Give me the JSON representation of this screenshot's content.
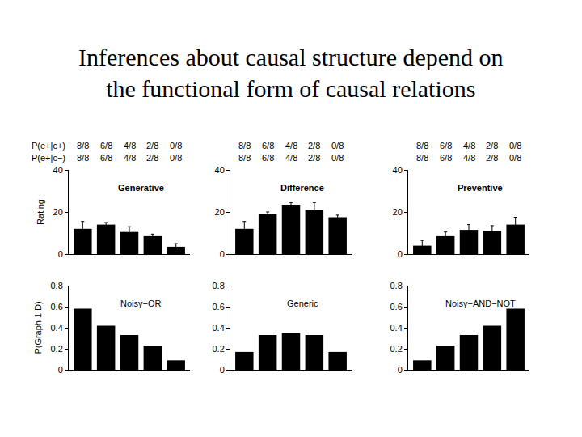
{
  "title": [
    "Inferences about causal structure depend on",
    "the functional form of causal relations"
  ],
  "chart_data": [
    {
      "type": "bar",
      "title": "Generative",
      "categories": [
        null,
        null,
        null,
        null,
        null
      ],
      "values": [
        12,
        14,
        10.5,
        8.5,
        3.5
      ],
      "errors": [
        3.5,
        1,
        2.5,
        1,
        1.5
      ],
      "color": "#000000",
      "ylim": [
        0,
        40
      ],
      "yticks": [
        0,
        20,
        40
      ],
      "ylabel": "Rating",
      "tick_labels": "y",
      "header_rows": [
        {
          "label": "P(e+|c+)",
          "values": [
            "8/8",
            "6/8",
            "4/8",
            "2/8",
            "0/8"
          ]
        },
        {
          "label": "P(e+|c−)",
          "values": [
            "8/8",
            "6/8",
            "4/8",
            "2/8",
            "0/8"
          ]
        }
      ]
    },
    {
      "type": "bar",
      "title": "Difference",
      "categories": [
        null,
        null,
        null,
        null,
        null
      ],
      "values": [
        12,
        19,
        23.5,
        21,
        17.5
      ],
      "errors": [
        3.5,
        1,
        1,
        3.5,
        1
      ],
      "color": "#000000",
      "ylim": [
        0,
        40
      ],
      "yticks": [
        0,
        20,
        40
      ],
      "tick_labels": "y",
      "header_rows": [
        {
          "values": [
            "8/8",
            "6/8",
            "4/8",
            "2/8",
            "0/8"
          ]
        },
        {
          "values": [
            "8/8",
            "6/8",
            "4/8",
            "2/8",
            "0/8"
          ]
        }
      ]
    },
    {
      "type": "bar",
      "title": "Preventive",
      "categories": [
        null,
        null,
        null,
        null,
        null
      ],
      "values": [
        4,
        8.5,
        11.5,
        11,
        14
      ],
      "errors": [
        2.5,
        2,
        2.5,
        2.5,
        3.5
      ],
      "color": "#000000",
      "ylim": [
        0,
        40
      ],
      "yticks": [
        0,
        20,
        40
      ],
      "tick_labels": "y",
      "header_rows": [
        {
          "values": [
            "8/8",
            "6/8",
            "4/8",
            "2/8",
            "0/8"
          ]
        },
        {
          "values": [
            "8/8",
            "6/8",
            "4/8",
            "2/8",
            "0/8"
          ]
        }
      ]
    },
    {
      "type": "bar",
      "title": "Noisy−OR",
      "categories": [
        null,
        null,
        null,
        null,
        null
      ],
      "values": [
        0.58,
        0.42,
        0.33,
        0.23,
        0.09
      ],
      "color": "#000000",
      "ylim": [
        0,
        0.8
      ],
      "yticks": [
        0,
        0.2,
        0.4,
        0.6,
        0.8
      ],
      "ylabel": "P(Graph 1|D)",
      "tick_labels": "y"
    },
    {
      "type": "bar",
      "title": "Generic",
      "categories": [
        null,
        null,
        null,
        null,
        null
      ],
      "values": [
        0.17,
        0.33,
        0.35,
        0.33,
        0.17
      ],
      "color": "#000000",
      "ylim": [
        0,
        0.8
      ],
      "yticks": [
        0,
        0.2,
        0.4,
        0.6,
        0.8
      ],
      "tick_labels": "y"
    },
    {
      "type": "bar",
      "title": "Noisy−AND−NOT",
      "categories": [
        null,
        null,
        null,
        null,
        null
      ],
      "values": [
        0.09,
        0.23,
        0.33,
        0.42,
        0.58
      ],
      "color": "#000000",
      "ylim": [
        0,
        0.8
      ],
      "yticks": [
        0,
        0.2,
        0.4,
        0.6,
        0.8
      ],
      "tick_labels": "y"
    }
  ]
}
